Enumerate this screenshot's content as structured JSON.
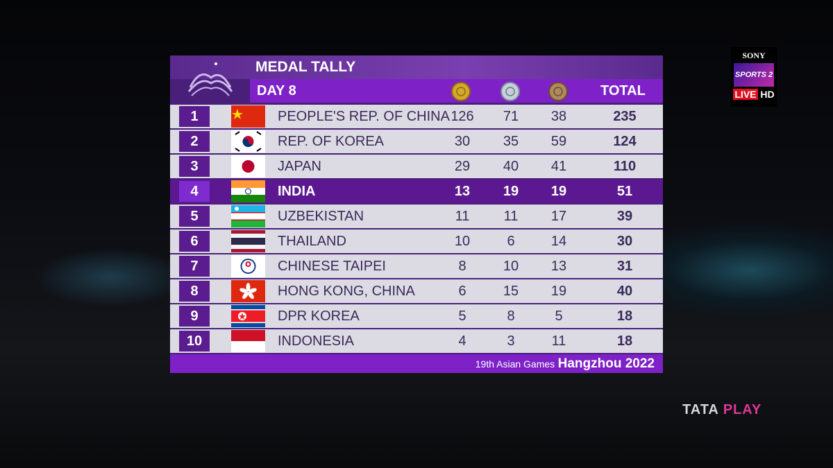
{
  "branding": {
    "channel": "SONY",
    "network": "SPORTS 2",
    "live": "LIVE",
    "quality": "HD",
    "provider_a": "TATA",
    "provider_b": "PLAY"
  },
  "table": {
    "title": "MEDAL TALLY",
    "day": "DAY 8",
    "total_header": "TOTAL",
    "rows": [
      {
        "rank": 1,
        "country": "PEOPLE'S REP. OF CHINA",
        "gold": 126,
        "silver": 71,
        "bronze": 38,
        "total": 235
      },
      {
        "rank": 2,
        "country": "REP. OF KOREA",
        "gold": 30,
        "silver": 35,
        "bronze": 59,
        "total": 124
      },
      {
        "rank": 3,
        "country": "JAPAN",
        "gold": 29,
        "silver": 40,
        "bronze": 41,
        "total": 110
      },
      {
        "rank": 4,
        "country": "INDIA",
        "gold": 13,
        "silver": 19,
        "bronze": 19,
        "total": 51
      },
      {
        "rank": 5,
        "country": "UZBEKISTAN",
        "gold": 11,
        "silver": 11,
        "bronze": 17,
        "total": 39
      },
      {
        "rank": 6,
        "country": "THAILAND",
        "gold": 10,
        "silver": 6,
        "bronze": 14,
        "total": 30
      },
      {
        "rank": 7,
        "country": "CHINESE TAIPEI",
        "gold": 8,
        "silver": 10,
        "bronze": 13,
        "total": 31
      },
      {
        "rank": 8,
        "country": "HONG KONG, CHINA",
        "gold": 6,
        "silver": 15,
        "bronze": 19,
        "total": 40
      },
      {
        "rank": 9,
        "country": "DPR KOREA",
        "gold": 5,
        "silver": 8,
        "bronze": 5,
        "total": 18
      },
      {
        "rank": 10,
        "country": "INDONESIA",
        "gold": 4,
        "silver": 3,
        "bronze": 11,
        "total": 18
      }
    ]
  },
  "footer": {
    "event": "19th Asian Games",
    "city": "Hangzhou 2022"
  }
}
